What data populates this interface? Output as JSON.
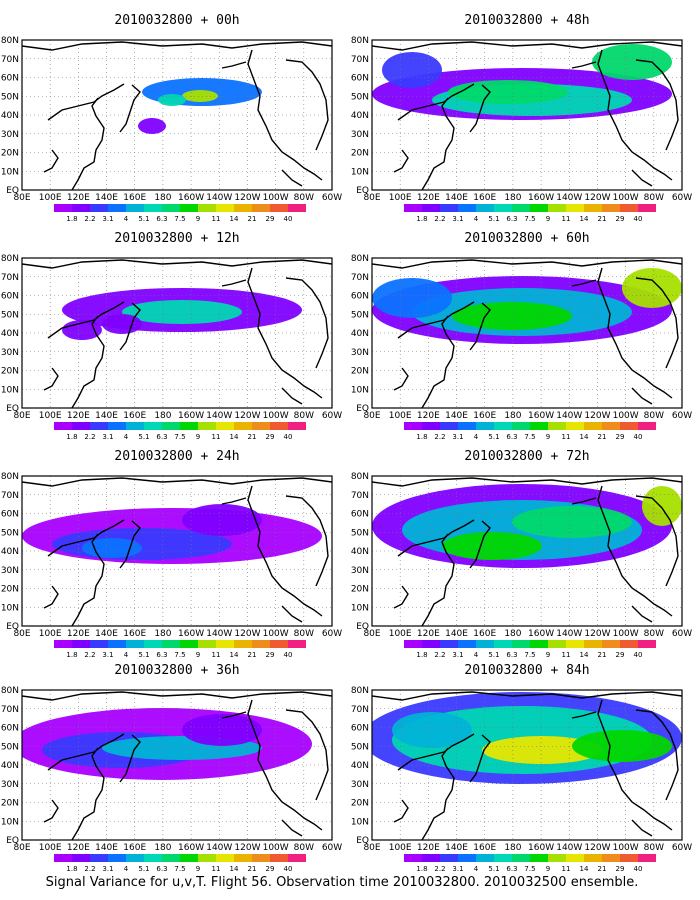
{
  "lat_labels": [
    "80N",
    "70N",
    "60N",
    "50N",
    "40N",
    "30N",
    "20N",
    "10N",
    "EQ"
  ],
  "lon_labels": [
    "80E",
    "100E",
    "120E",
    "140E",
    "160E",
    "180",
    "160W",
    "140W",
    "120W",
    "100W",
    "80W",
    "60W"
  ],
  "colorbar": {
    "labels": [
      "1.8",
      "2.2",
      "3.1",
      "4",
      "5.1",
      "6.3",
      "7.5",
      "9",
      "11",
      "14",
      "21",
      "29",
      "40"
    ],
    "colors": [
      "#a800ff",
      "#7f00ff",
      "#3a3aff",
      "#0b72ff",
      "#00b3d6",
      "#00d7b4",
      "#00d86b",
      "#00d700",
      "#a6e000",
      "#e6e600",
      "#e8b400",
      "#ee8c1c",
      "#f05a32",
      "#f02080"
    ]
  },
  "panels": [
    {
      "title": "2010032800 + 00h",
      "label_x0": "80E"
    },
    {
      "title": "2010032800 + 48h",
      "label_x0": "80E"
    },
    {
      "title": "2010032800 + 12h",
      "label_x0": "80E"
    },
    {
      "title": "2010032800 + 60h",
      "label_x0": "80E"
    },
    {
      "title": "2010032800 + 24h",
      "label_x0": "80E"
    },
    {
      "title": "2010032800 + 72h",
      "label_x0": "80E"
    },
    {
      "title": "2010032800 + 36h",
      "label_x0": "80E"
    },
    {
      "title": "2010032800 + 84h",
      "label_x0": "80E"
    }
  ],
  "caption": "Signal Variance for u,v,T. Flight 56. Observation time 2010032800. 2010032500 ensemble."
}
